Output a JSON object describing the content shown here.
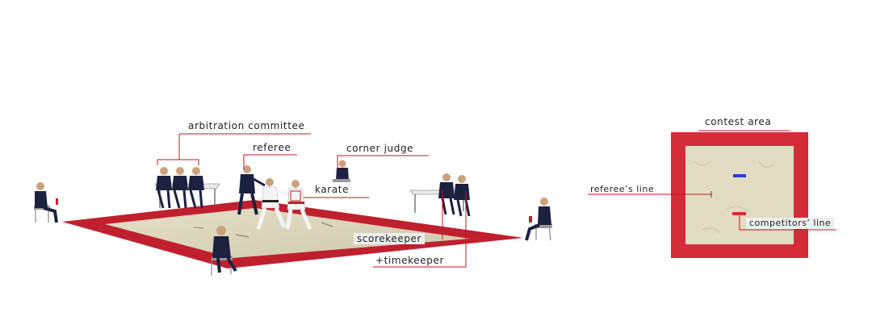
{
  "labels": {
    "arbitration_committee": "arbitration committee",
    "referee": "referee",
    "corner_judge": "corner judge",
    "karate": "karate",
    "scorekeeper": "scorekeeper",
    "timekeeper": "+timekeeper",
    "contest_area": "contest area",
    "referees_line": "referee’s line",
    "competitors_line": "competitors’ line"
  },
  "colors": {
    "mat_red": "#c0202e",
    "mat_inner": "#d8d2b8",
    "leader_line": "#cc1122",
    "suit_navy": "#1c2140",
    "gi_white": "#f4f4f4",
    "referee_line_blue": "#2a3fd0"
  }
}
